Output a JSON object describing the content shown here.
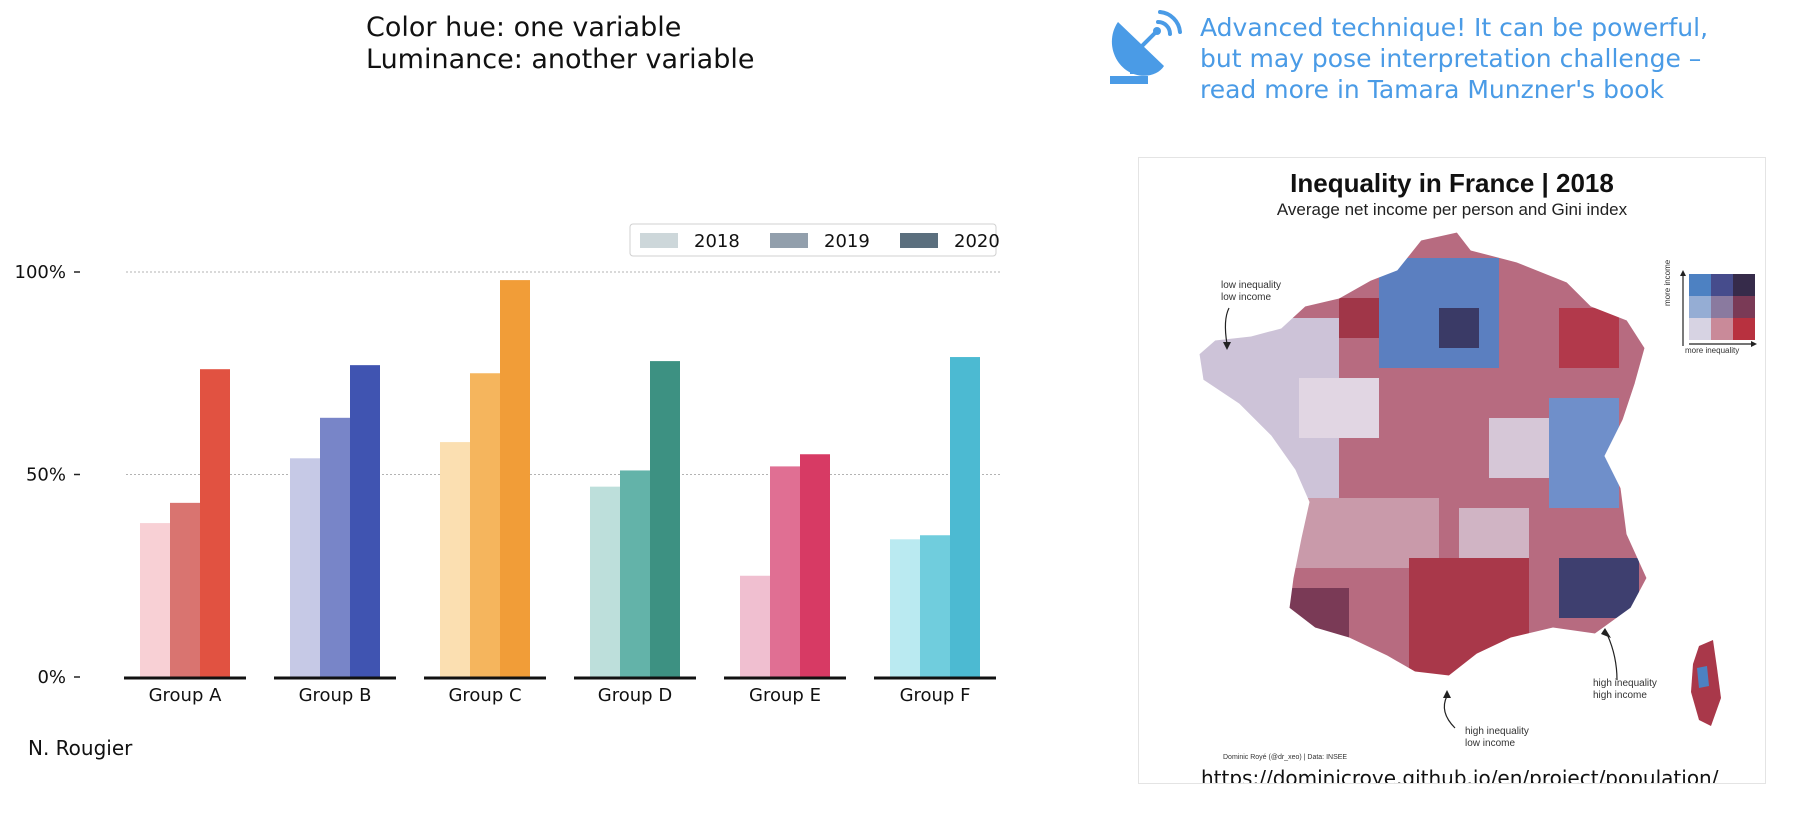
{
  "caption": {
    "line1": "Color hue: one variable",
    "line2": "Luminance: another variable"
  },
  "advice": {
    "line1": "Advanced technique! It can be powerful,",
    "line2": "but may pose interpretation challenge –",
    "line3": "read more in Tamara Munzner's book",
    "icon": "satellite-dish-icon",
    "color": "#4a9be6"
  },
  "author": "N. Rougier",
  "chart_data": {
    "type": "bar",
    "categories": [
      "Group A",
      "Group B",
      "Group C",
      "Group D",
      "Group E",
      "Group F"
    ],
    "series": [
      {
        "name": "2018",
        "values": [
          38,
          54,
          58,
          47,
          25,
          34
        ]
      },
      {
        "name": "2019",
        "values": [
          43,
          64,
          75,
          51,
          52,
          35
        ]
      },
      {
        "name": "2020",
        "values": [
          76,
          77,
          98,
          78,
          55,
          79
        ]
      }
    ],
    "ylim": [
      0,
      115
    ],
    "yticks": [
      0,
      50,
      100
    ],
    "ytick_labels": [
      "0%",
      "50%",
      "100%"
    ],
    "grid": "horizontal dashed at 50% and 100%",
    "legend_position": "top-right",
    "legend_colors": [
      "#cdd7da",
      "#929fac",
      "#5b6f7e"
    ],
    "group_colors": [
      [
        "#f8d0d5",
        "#d97470",
        "#e15241"
      ],
      [
        "#c6c9e6",
        "#7885c8",
        "#4054b1"
      ],
      [
        "#fbdfb1",
        "#f5b55d",
        "#f19d38"
      ],
      [
        "#bddfdb",
        "#63b3a9",
        "#3d9182"
      ],
      [
        "#f0bfd0",
        "#e06f93",
        "#d73a64"
      ],
      [
        "#baeaf1",
        "#70cddd",
        "#4cbad2"
      ]
    ]
  },
  "map": {
    "title": "Inequality in France | 2018",
    "subtitle": "Average net income per person and Gini index",
    "annotations": {
      "low_low_1": "low inequality",
      "low_low_2": "low income",
      "high_high_1": "high inequality",
      "high_high_2": "high income",
      "high_low_1": "high inequality",
      "high_low_2": "low income"
    },
    "legend_y": "more income",
    "legend_x": "more inequality",
    "legend_colors": [
      [
        "#4d81c2",
        "#464c8c",
        "#362b4a"
      ],
      [
        "#95add4",
        "#8a7a9f",
        "#7a3a56"
      ],
      [
        "#d7d3e3",
        "#c98a99",
        "#b8313f"
      ]
    ],
    "credit": "Dominic Royé (@dr_xeo) | Data: INSEE",
    "url": "https://dominicroye.github.io/en/project/population/"
  }
}
